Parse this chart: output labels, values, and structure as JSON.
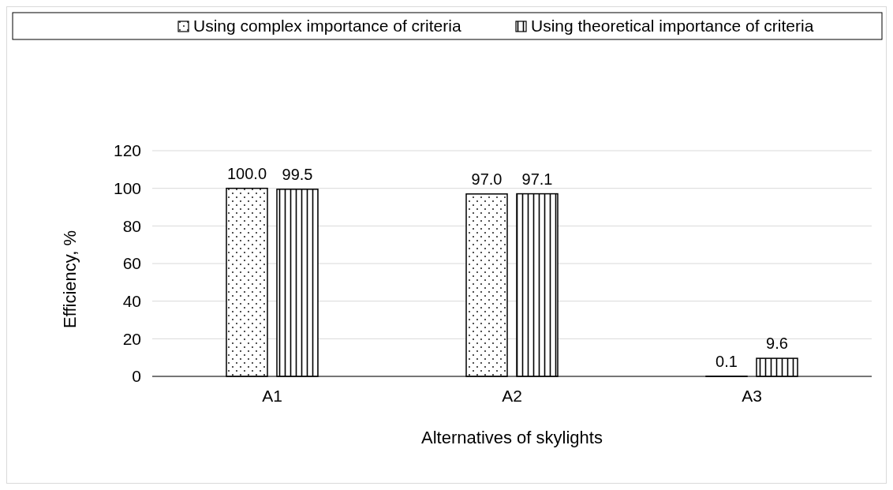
{
  "chart_data": {
    "type": "bar",
    "xlabel": "Alternatives of skylights",
    "ylabel": "Efficiency, %",
    "categories": [
      "A1",
      "A2",
      "A3"
    ],
    "series": [
      {
        "name": "Using complex importance of criteria",
        "color": "#000000",
        "values": [
          100.0,
          97.0,
          0.1
        ],
        "value_labels": [
          "100.0",
          "97.0",
          "0.1"
        ]
      },
      {
        "name": "Using theoretical importance of criteria",
        "color": "#000000",
        "values": [
          99.5,
          97.1,
          9.6
        ],
        "value_labels": [
          "99.5",
          "97.1",
          "9.6"
        ]
      }
    ],
    "ylim": [
      0,
      120
    ],
    "yticks": [
      0,
      20,
      40,
      60,
      80,
      100,
      120
    ],
    "grid": "y",
    "legend": "top"
  }
}
